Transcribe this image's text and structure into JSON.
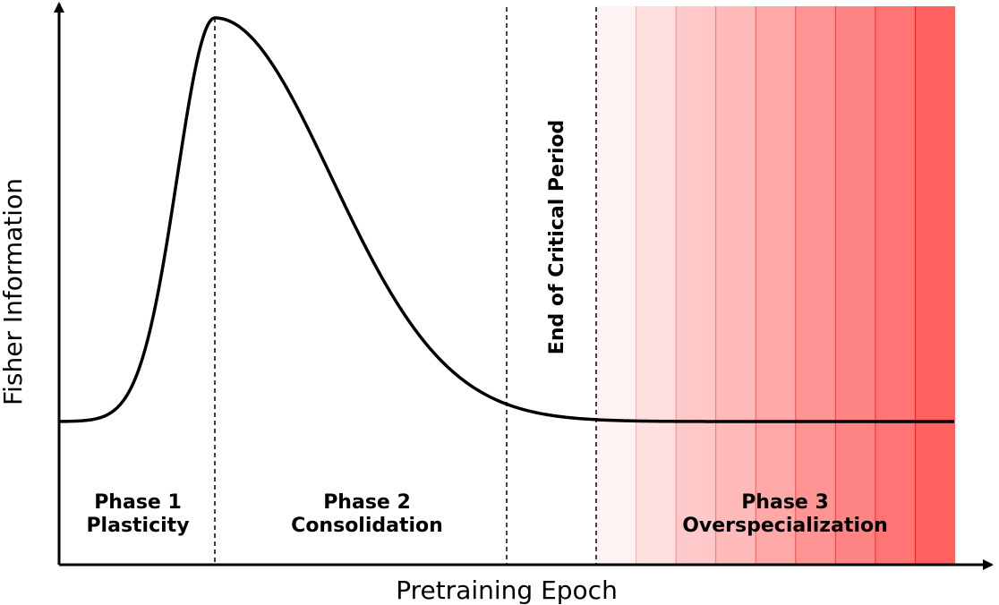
{
  "axes": {
    "xlabel": "Pretraining Epoch",
    "ylabel": "Fisher Information"
  },
  "phases": [
    {
      "line1": "Phase 1",
      "line2": "Plasticity"
    },
    {
      "line1": "Phase 2",
      "line2": "Consolidation"
    },
    {
      "line1": "Phase 3",
      "line2": "Overspecialization"
    }
  ],
  "annotation": {
    "critical_period": "End of Critical Period"
  },
  "colors": {
    "curve": "#000000",
    "overspecialization_fill": "#ff0000",
    "band_opacities": [
      0.05,
      0.12,
      0.21,
      0.27,
      0.34,
      0.42,
      0.48,
      0.54,
      0.62
    ]
  }
}
